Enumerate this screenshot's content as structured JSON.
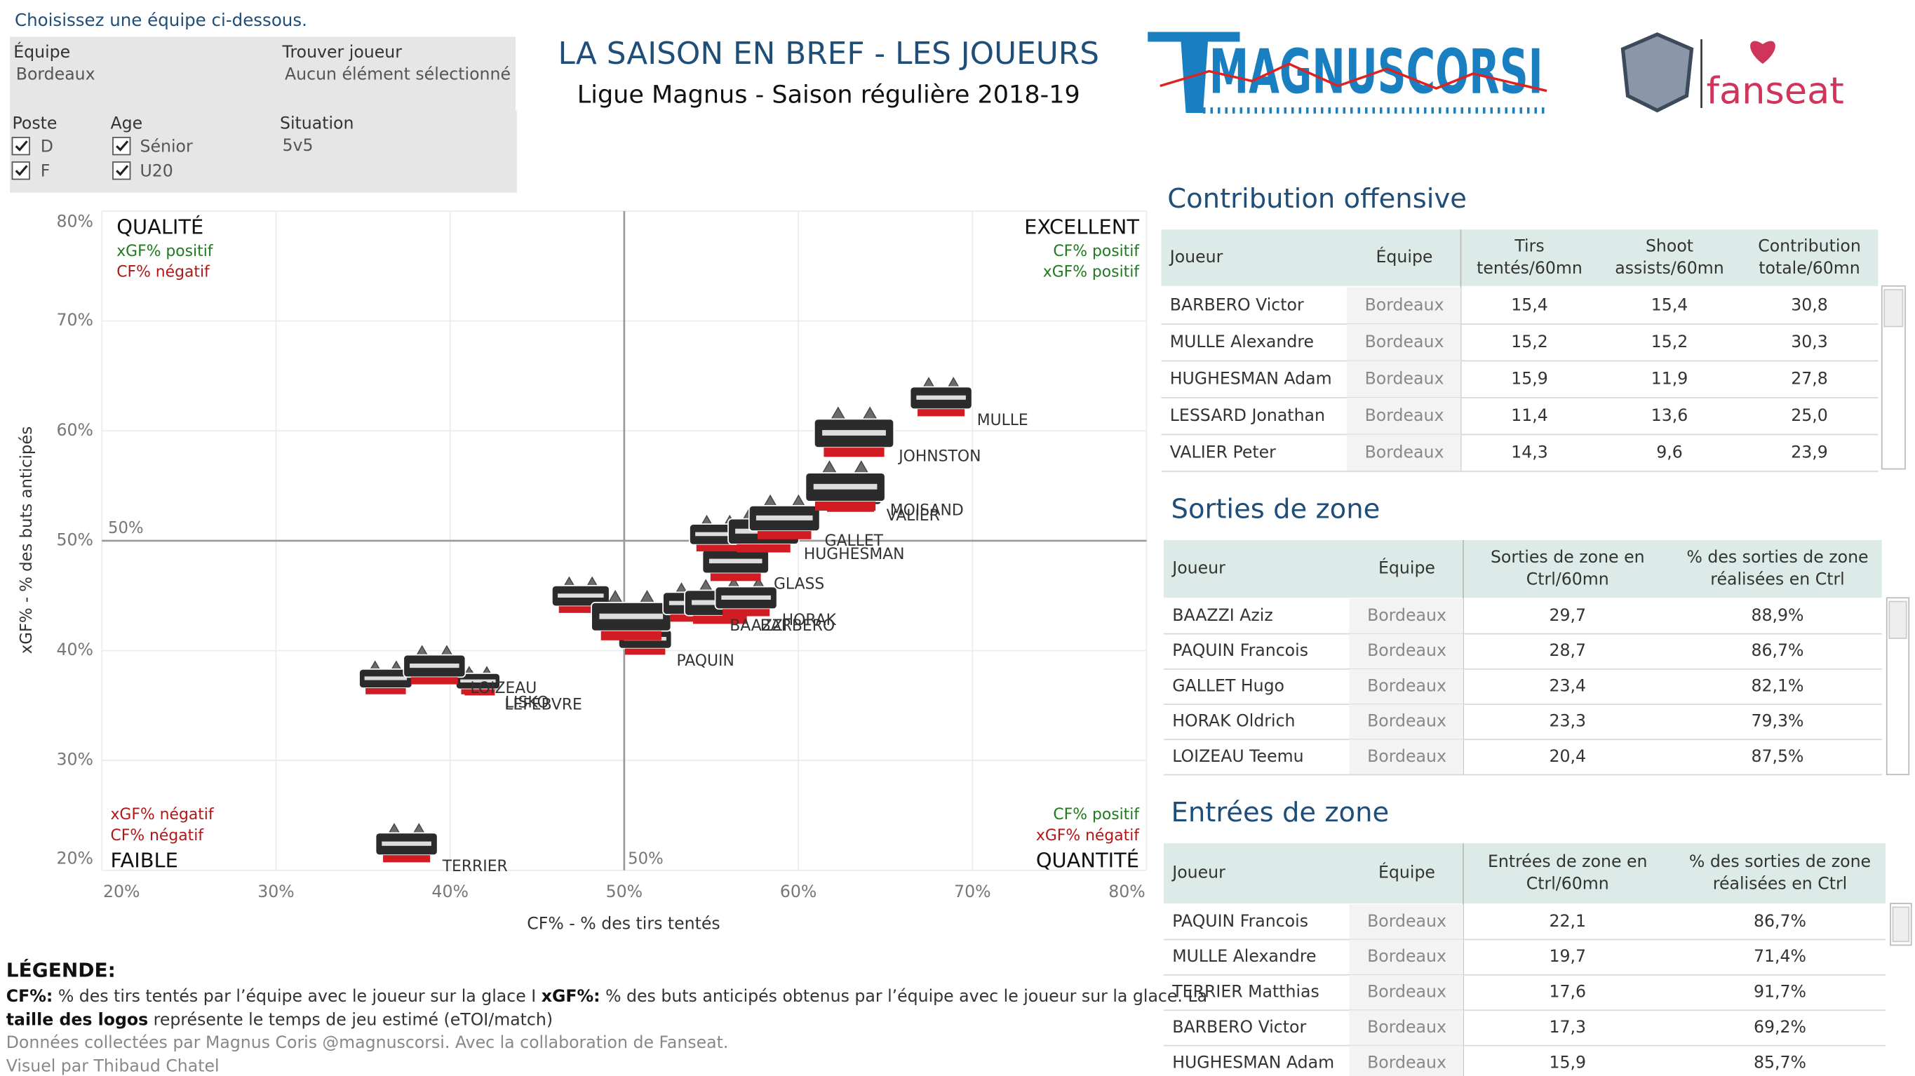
{
  "header": {
    "prompt": "Choisissez une équipe ci-dessous.",
    "title": "LA SAISON EN BREF - LES JOUEURS",
    "subtitle": "Ligue Magnus - Saison régulière 2018-19",
    "logo_text": "MAGNUSCORSI",
    "partner": "fanseat"
  },
  "filters": {
    "team_label": "Équipe",
    "team": "Bordeaux",
    "player_label": "Trouver joueur",
    "player": "Aucun élément sélectionné",
    "position_label": "Poste",
    "positions": [
      "D",
      "F"
    ],
    "age_label": "Age",
    "ages": [
      "Sénior",
      "U20"
    ],
    "situation_label": "Situation",
    "situation": "5v5"
  },
  "chart_data": {
    "type": "scatter",
    "xlabel": "CF% - % des tirs tentés",
    "ylabel": "xGF% - % des buts anticipés",
    "labels": [
      "MULLE",
      "JOHNSTON",
      "MOISAND",
      "VALIER",
      "GALLET",
      "HUGHESMAN",
      null,
      "GLASS",
      "HORAK",
      "BARBERO",
      "BAAZZI",
      null,
      "PAQUIN",
      null,
      "LOIZEAU",
      "LISKO",
      "LEFEBVRE",
      null,
      "TERRIER"
    ],
    "x": [
      68.2,
      63.2,
      62.7,
      63.0,
      59.2,
      58.0,
      55.4,
      56.4,
      57.0,
      55.5,
      54.0,
      50.4,
      51.2,
      47.5,
      39.1,
      41.6,
      41.7,
      36.3,
      37.5
    ],
    "values": [
      62.7,
      59.4,
      54.5,
      54.0,
      51.7,
      50.5,
      50.3,
      47.8,
      44.5,
      44.0,
      44.0,
      42.7,
      40.8,
      44.7,
      38.3,
      37.0,
      36.8,
      37.2,
      22.1
    ],
    "sizes": [
      14,
      18,
      18,
      14,
      16,
      16,
      13,
      15,
      14,
      16,
      14,
      18,
      12,
      13,
      14,
      10,
      9,
      12,
      14
    ],
    "xlim": [
      20,
      80
    ],
    "ylim": [
      20,
      80
    ],
    "xticks": [
      {
        "value": 20,
        "label": "20%"
      },
      {
        "value": 30,
        "label": "30%"
      },
      {
        "value": 40,
        "label": "40%"
      },
      {
        "value": 50,
        "label": "50%"
      },
      {
        "value": 60,
        "label": "60%"
      },
      {
        "value": 70,
        "label": "70%"
      },
      {
        "value": 80,
        "label": "80%"
      }
    ],
    "yticks": [
      {
        "value": 20,
        "label": "20%"
      },
      {
        "value": 30,
        "label": "30%"
      },
      {
        "value": 40,
        "label": "40%"
      },
      {
        "value": 50,
        "label": "50%"
      },
      {
        "value": 60,
        "label": "60%"
      },
      {
        "value": 70,
        "label": "70%"
      },
      {
        "value": 80,
        "label": "80%"
      }
    ],
    "reference": {
      "value": 50,
      "label": "50%"
    },
    "grid": true,
    "quadrants": [
      {
        "position": "top-left",
        "title": "QUALITÉ",
        "lines": [
          {
            "text": "xGF% positif",
            "color": "#1e7b1e"
          },
          {
            "text": "CF% négatif",
            "color": "#b01818"
          }
        ]
      },
      {
        "position": "top-right",
        "title": "EXCELLENT",
        "lines": [
          {
            "text": "CF% positif",
            "color": "#1e7b1e"
          },
          {
            "text": "xGF% positif",
            "color": "#1e7b1e"
          }
        ]
      },
      {
        "position": "bottom-left",
        "title": "FAIBLE",
        "lines": [
          {
            "text": "xGF% négatif",
            "color": "#b01818"
          },
          {
            "text": "CF% négatif",
            "color": "#b01818"
          }
        ]
      },
      {
        "position": "bottom-right",
        "title": "QUANTITÉ",
        "lines": [
          {
            "text": "CF% positif",
            "color": "#1e7b1e"
          },
          {
            "text": "xGF% négatif",
            "color": "#b01818"
          }
        ]
      }
    ]
  },
  "tables": [
    {
      "title": "Contribution offensive",
      "columns": [
        [
          "Joueur"
        ],
        [
          "Équipe"
        ],
        [
          "Tirs",
          "tentés/60mn"
        ],
        [
          "Shoot",
          "assists/60mn"
        ],
        [
          "Contribution",
          "totale/60mn"
        ]
      ],
      "rows": [
        [
          "BARBERO Victor",
          "Bordeaux",
          "15,4",
          "15,4",
          "30,8"
        ],
        [
          "MULLE Alexandre",
          "Bordeaux",
          "15,2",
          "15,2",
          "30,3"
        ],
        [
          "HUGHESMAN Adam",
          "Bordeaux",
          "15,9",
          "11,9",
          "27,8"
        ],
        [
          "LESSARD Jonathan",
          "Bordeaux",
          "11,4",
          "13,6",
          "25,0"
        ],
        [
          "VALIER Peter",
          "Bordeaux",
          "14,3",
          "9,6",
          "23,9"
        ]
      ]
    },
    {
      "title": "Sorties de zone",
      "columns": [
        [
          "Joueur"
        ],
        [
          "Équipe"
        ],
        [
          "Sorties de zone en",
          "Ctrl/60mn"
        ],
        [
          "% des sorties de zone",
          "réalisées en Ctrl"
        ]
      ],
      "rows": [
        [
          "BAAZZI Aziz",
          "Bordeaux",
          "29,7",
          "88,9%"
        ],
        [
          "PAQUIN Francois",
          "Bordeaux",
          "28,7",
          "86,7%"
        ],
        [
          "GALLET Hugo",
          "Bordeaux",
          "23,4",
          "82,1%"
        ],
        [
          "HORAK Oldrich",
          "Bordeaux",
          "23,3",
          "79,3%"
        ],
        [
          "LOIZEAU Teemu",
          "Bordeaux",
          "20,4",
          "87,5%"
        ]
      ]
    },
    {
      "title": "Entrées de zone",
      "columns": [
        [
          "Joueur"
        ],
        [
          "Équipe"
        ],
        [
          "Entrées de zone en",
          "Ctrl/60mn"
        ],
        [
          "% des sorties de zone",
          "réalisées en Ctrl"
        ]
      ],
      "rows": [
        [
          "PAQUIN Francois",
          "Bordeaux",
          "22,1",
          "86,7%"
        ],
        [
          "MULLE Alexandre",
          "Bordeaux",
          "19,7",
          "71,4%"
        ],
        [
          "TERRIER Matthias",
          "Bordeaux",
          "17,6",
          "91,7%"
        ],
        [
          "BARBERO Victor",
          "Bordeaux",
          "17,3",
          "69,2%"
        ],
        [
          "HUGHESMAN Adam",
          "Bordeaux",
          "15,9",
          "85,7%"
        ]
      ]
    }
  ],
  "legend": {
    "title": "LÉGENDE:",
    "line1": [
      "CF%:",
      " % des tirs tentés par l’équipe avec le joueur sur la glace I  ",
      "xGF%:",
      " % des buts anticipés obtenus par l’équipe avec le joueur sur la glace. La"
    ],
    "line2": [
      "taille des logos",
      " représente le temps de jeu estimé (eTOI/match)"
    ],
    "credits": [
      "Données collectées par Magnus Coris @magnuscorsi. Avec la collaboration de Fanseat.",
      "Visuel par Thibaud Chatel"
    ]
  }
}
